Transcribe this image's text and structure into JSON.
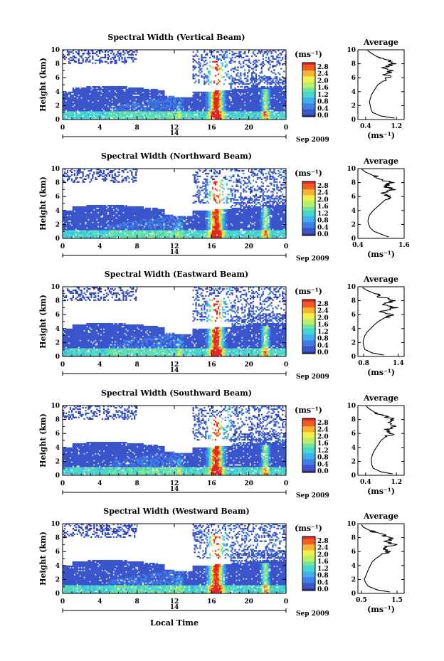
{
  "panel_titles": [
    "Spectral Width (Vertical Beam)",
    "Spectral Width (Northward Beam)",
    "Spectral Width (Eastward Beam)",
    "Spectral Width (Southward Beam)",
    "Spectral Width (Westward Beam)"
  ],
  "y_axis_label": "Height (km)",
  "y_ticks": [
    "0",
    "2",
    "4",
    "6",
    "8",
    "10"
  ],
  "x_ticks": [
    "0",
    "4",
    "8",
    "12",
    "16",
    "20",
    "0"
  ],
  "day_label": "14",
  "date_label": "Sep 2009",
  "x_axis_label": "Local Time",
  "colorbar_unit": "(ms⁻¹)",
  "colorbar_ticks": [
    "0.0",
    "0.4",
    "0.8",
    "1.2",
    "1.6",
    "2.0",
    "2.4",
    "2.8"
  ],
  "avg_title": "Average",
  "avg_unit": "(ms⁻¹)",
  "colors": {
    "scale": [
      "#2b2f86",
      "#3a55cc",
      "#3f7fe6",
      "#3fb0ee",
      "#46d6d0",
      "#6fe3a0",
      "#b9ee6a",
      "#f3ef4a",
      "#f7b232",
      "#f25b25",
      "#e2251e"
    ],
    "axis": "#000000"
  },
  "chart_data": [
    {
      "type": "heatmap",
      "title": "Spectral Width (Vertical Beam)",
      "x_range": [
        0,
        24
      ],
      "y_range": [
        0,
        10
      ],
      "xlabel": "",
      "ylabel": "Height (km)",
      "color_range": [
        0.0,
        2.8
      ],
      "grid": false,
      "avg_profile": {
        "type": "line",
        "xlabel": "(ms⁻¹)",
        "x_ticks": [
          "0.4",
          "1.2"
        ],
        "xlim": [
          0.2,
          1.4
        ],
        "heights": [
          0.2,
          0.5,
          1,
          1.5,
          2,
          2.5,
          3,
          3.5,
          4,
          4.5,
          5,
          5.5,
          6,
          6.5,
          7,
          7.5,
          8,
          8.5,
          9,
          9.5,
          9.9
        ],
        "values": [
          1.15,
          0.8,
          0.58,
          0.54,
          0.52,
          0.5,
          0.52,
          0.55,
          0.6,
          0.66,
          0.72,
          0.85,
          1.0,
          0.92,
          1.05,
          0.9,
          1.1,
          0.95,
          0.7,
          0.55,
          0.45
        ]
      }
    },
    {
      "type": "heatmap",
      "title": "Spectral Width (Northward Beam)",
      "x_range": [
        0,
        24
      ],
      "y_range": [
        0,
        10
      ],
      "xlabel": "",
      "ylabel": "Height (km)",
      "color_range": [
        0.0,
        2.8
      ],
      "grid": false,
      "avg_profile": {
        "type": "line",
        "xlabel": "(ms⁻¹)",
        "x_ticks": [
          "0.4",
          "1.6"
        ],
        "xlim": [
          0.4,
          1.6
        ],
        "heights": [
          0.2,
          0.5,
          1,
          1.5,
          2,
          2.5,
          3,
          3.5,
          4,
          4.5,
          5,
          5.5,
          6,
          6.5,
          7,
          7.5,
          8,
          8.5,
          9,
          9.5,
          9.9
        ],
        "values": [
          1.2,
          1.05,
          0.82,
          0.72,
          0.68,
          0.66,
          0.68,
          0.72,
          0.8,
          0.9,
          1.0,
          1.1,
          1.25,
          1.05,
          1.3,
          1.1,
          1.25,
          1.0,
          0.8,
          0.6,
          0.5
        ]
      }
    },
    {
      "type": "heatmap",
      "title": "Spectral Width (Eastward Beam)",
      "x_range": [
        0,
        24
      ],
      "y_range": [
        0,
        10
      ],
      "xlabel": "",
      "ylabel": "Height (km)",
      "color_range": [
        0.0,
        2.8
      ],
      "grid": false,
      "avg_profile": {
        "type": "line",
        "xlabel": "(ms⁻¹)",
        "x_ticks": [
          "0.8",
          "1.4"
        ],
        "xlim": [
          0.7,
          1.5
        ],
        "heights": [
          0.2,
          0.5,
          1,
          1.5,
          2,
          2.5,
          3,
          3.5,
          4,
          4.5,
          5,
          5.5,
          6,
          6.5,
          7,
          7.5,
          8,
          8.5,
          9,
          9.5,
          9.9
        ],
        "values": [
          1.15,
          0.95,
          0.82,
          0.8,
          0.79,
          0.8,
          0.82,
          0.86,
          0.92,
          0.98,
          1.05,
          1.15,
          1.3,
          1.1,
          1.35,
          1.15,
          1.3,
          1.1,
          1.0,
          0.85,
          0.78
        ]
      }
    },
    {
      "type": "heatmap",
      "title": "Spectral Width (Southward Beam)",
      "x_range": [
        0,
        24
      ],
      "y_range": [
        0,
        10
      ],
      "xlabel": "",
      "ylabel": "Height (km)",
      "color_range": [
        0.0,
        2.8
      ],
      "grid": false,
      "avg_profile": {
        "type": "line",
        "xlabel": "(ms⁻¹)",
        "x_ticks": [
          "0.4",
          "1.2"
        ],
        "xlim": [
          0.2,
          1.4
        ],
        "heights": [
          0.2,
          0.5,
          1,
          1.5,
          2,
          2.5,
          3,
          3.5,
          4,
          4.5,
          5,
          5.5,
          6,
          6.5,
          7,
          7.5,
          8,
          8.5,
          9,
          9.5,
          9.9
        ],
        "values": [
          1.1,
          0.8,
          0.6,
          0.56,
          0.55,
          0.55,
          0.58,
          0.62,
          0.68,
          0.74,
          0.8,
          0.92,
          1.1,
          0.95,
          1.15,
          1.0,
          1.1,
          0.9,
          0.65,
          0.5,
          0.42
        ]
      }
    },
    {
      "type": "heatmap",
      "title": "Spectral Width (Westward Beam)",
      "x_range": [
        0,
        24
      ],
      "y_range": [
        0,
        10
      ],
      "xlabel": "Local Time",
      "ylabel": "Height (km)",
      "color_range": [
        0.0,
        2.8
      ],
      "grid": false,
      "avg_profile": {
        "type": "line",
        "xlabel": "(ms⁻¹)",
        "x_ticks": [
          "0.5",
          "1.5"
        ],
        "xlim": [
          0.4,
          1.7
        ],
        "heights": [
          0.2,
          0.5,
          1,
          1.5,
          2,
          2.5,
          3,
          3.5,
          4,
          4.5,
          5,
          5.5,
          6,
          6.5,
          7,
          7.5,
          8,
          8.5,
          9,
          9.5,
          9.9
        ],
        "values": [
          1.3,
          0.95,
          0.7,
          0.62,
          0.58,
          0.62,
          0.66,
          0.7,
          0.75,
          0.8,
          0.9,
          1.05,
          1.25,
          1.1,
          1.4,
          1.2,
          1.3,
          1.05,
          0.75,
          0.55,
          0.5
        ]
      }
    }
  ]
}
